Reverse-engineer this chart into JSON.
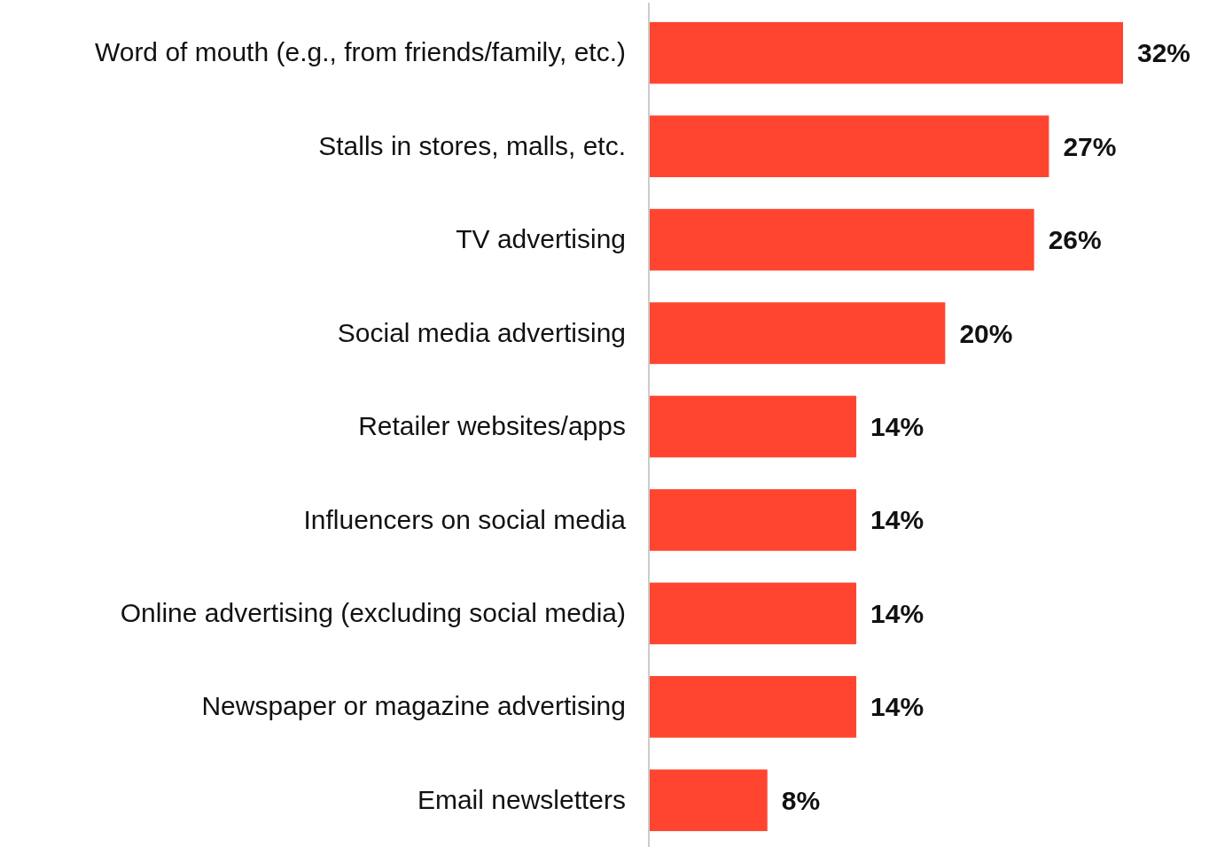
{
  "chart_data": {
    "type": "bar",
    "orientation": "horizontal",
    "categories": [
      "Word of mouth (e.g., from friends/family, etc.)",
      "Stalls in stores, malls, etc.",
      "TV advertising",
      "Social media advertising",
      "Retailer websites/apps",
      "Influencers on social media",
      "Online advertising (excluding social media)",
      "Newspaper or magazine advertising",
      "Email newsletters"
    ],
    "values": [
      32,
      27,
      26,
      20,
      14,
      14,
      14,
      14,
      8
    ],
    "value_labels": [
      "32%",
      "27%",
      "26%",
      "20%",
      "14%",
      "14%",
      "14%",
      "14%",
      "8%"
    ],
    "color": "#ff4530"
  }
}
